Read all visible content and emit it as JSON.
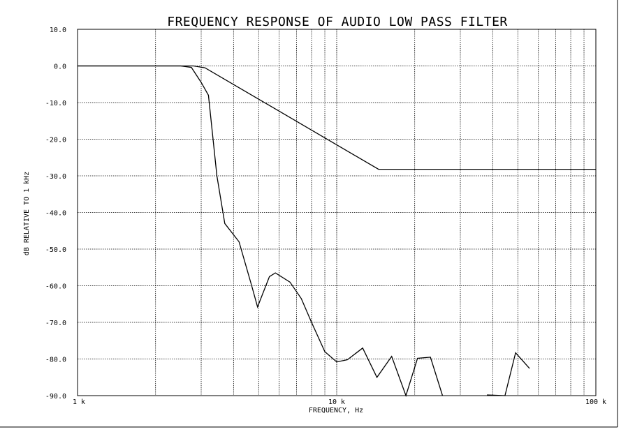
{
  "chart_data": {
    "type": "line",
    "title": "FREQUENCY RESPONSE OF AUDIO LOW PASS FILTER",
    "xlabel": "FREQUENCY, Hz",
    "ylabel": "dB RELATIVE TO 1 kHz",
    "x_scale": "log",
    "xlim": [
      1,
      100
    ],
    "ylim": [
      -90,
      10
    ],
    "x_tick_labels": [
      {
        "value": 1,
        "label": "1 k"
      },
      {
        "value": 10,
        "label": "10 k"
      },
      {
        "value": 100,
        "label": "100 k"
      }
    ],
    "y_tick_labels": [
      "10.0",
      "0.0",
      "-10.0",
      "-20.0",
      "-30.0",
      "-40.0",
      "-50.0",
      "-60.0",
      "-70.0",
      "-80.0",
      "-90.0"
    ],
    "y_ticks": [
      10,
      0,
      -10,
      -20,
      -30,
      -40,
      -50,
      -60,
      -70,
      -80,
      -90
    ],
    "grid": true,
    "series": [
      {
        "points": [
          [
            1.0,
            0.0
          ],
          [
            2.8,
            0.0
          ],
          [
            3.1,
            -0.5
          ],
          [
            14.5,
            -28.2
          ],
          [
            100.0,
            -28.2
          ]
        ]
      },
      {
        "points": [
          [
            1.0,
            0.0
          ],
          [
            2.5,
            0.0
          ],
          [
            2.75,
            -0.4
          ],
          [
            3.0,
            -4.5
          ],
          [
            3.2,
            -8.0
          ],
          [
            3.45,
            -30.0
          ],
          [
            3.7,
            -43.0
          ],
          [
            4.2,
            -48.0
          ],
          [
            4.7,
            -60.0
          ],
          [
            4.95,
            -65.8
          ],
          [
            5.5,
            -57.5
          ],
          [
            5.8,
            -56.5
          ],
          [
            6.6,
            -59.0
          ],
          [
            7.3,
            -63.5
          ],
          [
            8.0,
            -70.0
          ],
          [
            9.0,
            -78.0
          ],
          [
            10.0,
            -80.8
          ],
          [
            11.0,
            -80.2
          ],
          [
            12.6,
            -77.0
          ],
          [
            14.3,
            -85.0
          ],
          [
            16.3,
            -79.3
          ],
          [
            18.5,
            -90.0
          ],
          [
            20.5,
            -79.8
          ],
          [
            23.0,
            -79.5
          ],
          [
            25.6,
            -90.0
          ]
        ]
      },
      {
        "points": [
          [
            38.0,
            -89.8
          ],
          [
            44.6,
            -90.0
          ],
          [
            49.0,
            -78.3
          ],
          [
            55.5,
            -82.6
          ]
        ]
      }
    ]
  }
}
